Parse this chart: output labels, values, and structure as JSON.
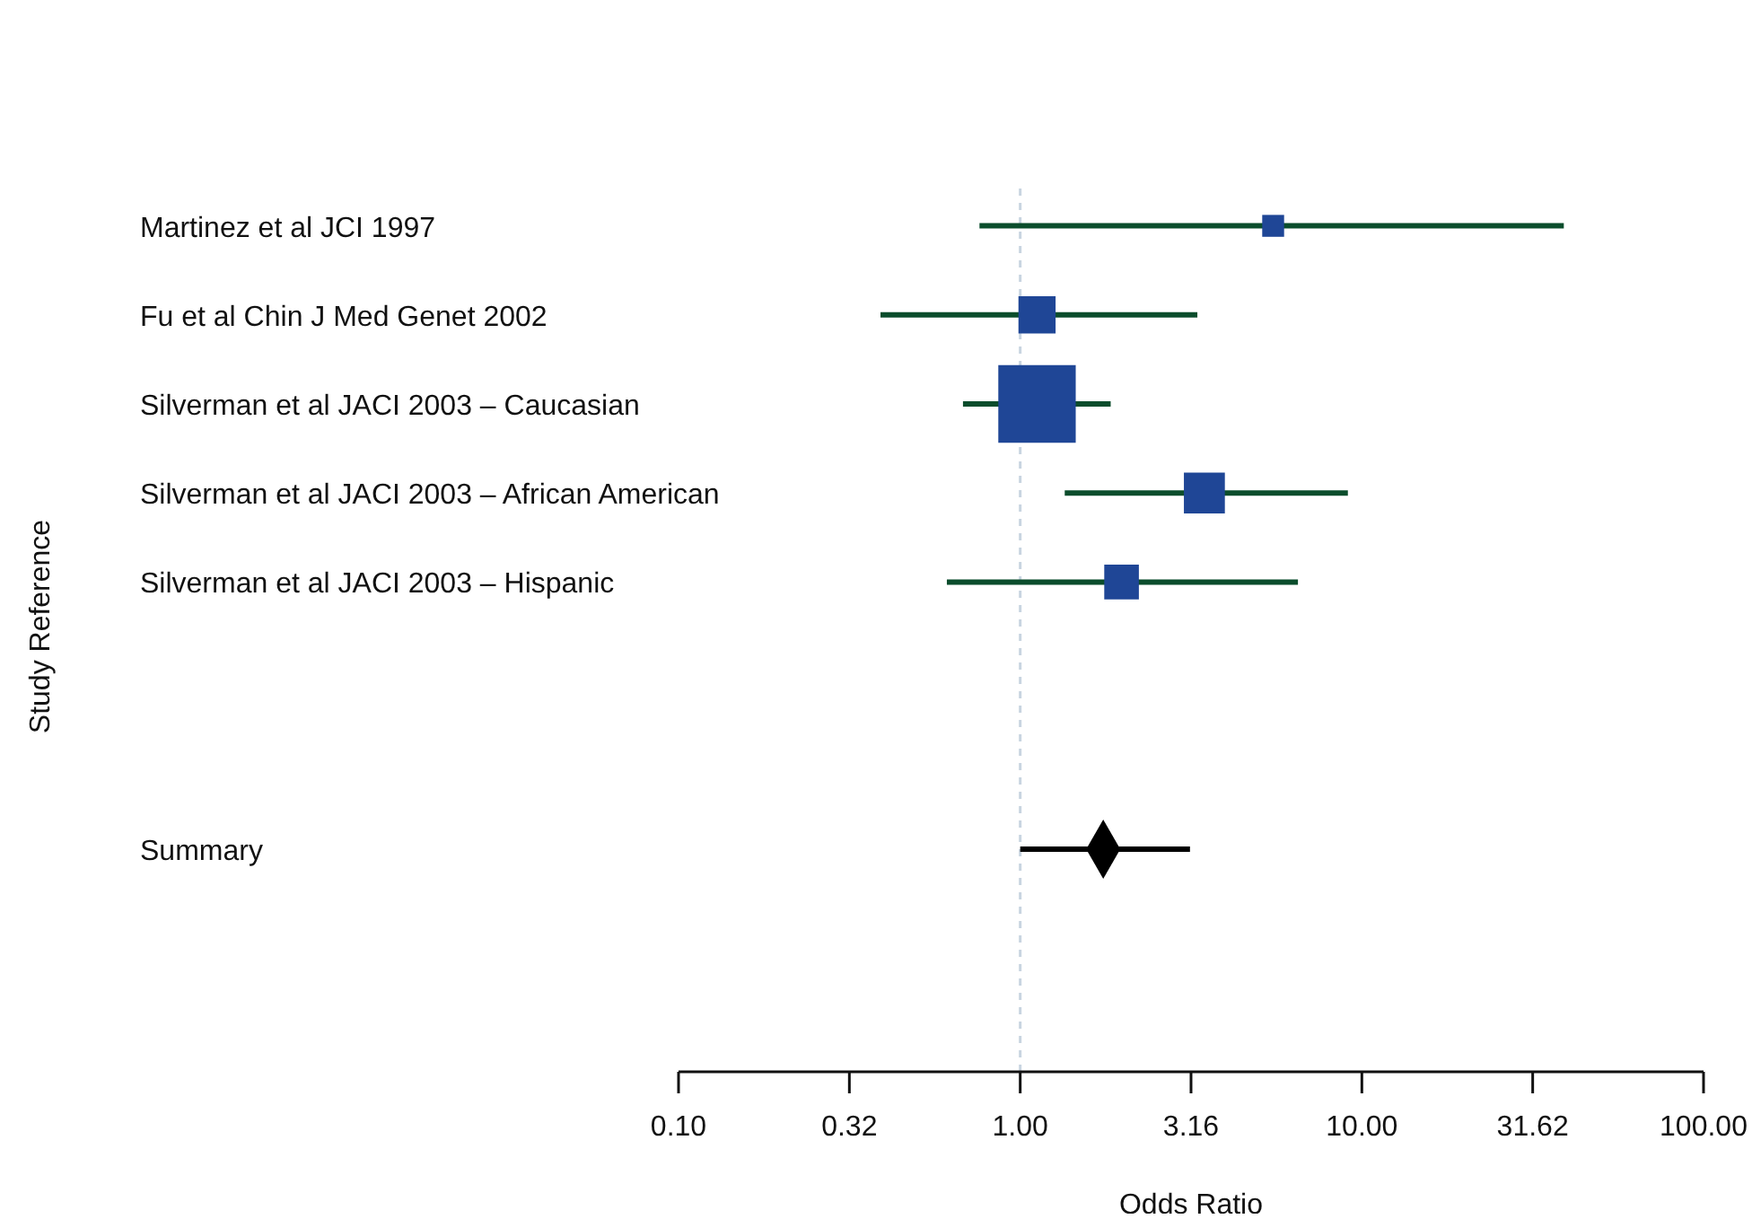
{
  "chart_data": {
    "type": "bubble",
    "orientation": "horizontal",
    "log": "x",
    "xlabel": "Odds Ratio",
    "ylabel": "Study Reference",
    "categories": [
      "Martinez et al JCI 1997",
      "Fu et al Chin J Med Genet 2002",
      "Silverman et al JACI 2003 – Caucasian",
      "Silverman et al JACI 2003 – African American",
      "Silverman et al JACI 2003 – Hispanic",
      null,
      null,
      "Summary",
      null,
      null
    ],
    "series": [
      {
        "type": "bubble",
        "marker": "square",
        "color": "#1f4696",
        "values": [
          5.5,
          1.12,
          1.12,
          3.46,
          1.98,
          null,
          null,
          null,
          null,
          null
        ],
        "sizes": [
          0.08,
          0.23,
          1,
          0.28,
          0.2,
          null,
          null,
          null,
          null,
          null
        ],
        "errors": [
          [
            0.76,
            39
          ],
          [
            0.39,
            3.3
          ],
          [
            0.68,
            1.84
          ],
          [
            1.35,
            9.1
          ],
          [
            0.61,
            6.5
          ],
          null,
          null,
          null,
          null,
          null
        ]
      },
      {
        "type": "scatter",
        "marker": "diamond",
        "color": "#000000",
        "values": [
          null,
          null,
          null,
          null,
          null,
          null,
          null,
          1.75,
          null,
          null
        ],
        "errors": [
          null,
          null,
          null,
          null,
          null,
          null,
          null,
          [
            1.0,
            3.14
          ],
          null,
          null
        ]
      }
    ],
    "xlim": [
      0.1,
      100
    ],
    "xticks": [
      {
        "value": 0.1,
        "label": "0.10"
      },
      {
        "value": 0.3162,
        "label": "0.32"
      },
      {
        "value": 1,
        "label": "1.00"
      },
      {
        "value": 3.162,
        "label": "3.16"
      },
      {
        "value": 10,
        "label": "10.00"
      },
      {
        "value": 31.62,
        "label": "31.62"
      },
      {
        "value": 100,
        "label": "100.00"
      }
    ],
    "ref_lines": [
      {
        "axis": "x",
        "value": 1,
        "color": "#c8d4e0",
        "line_style": "dashed"
      }
    ],
    "grid": false,
    "legend": false
  }
}
